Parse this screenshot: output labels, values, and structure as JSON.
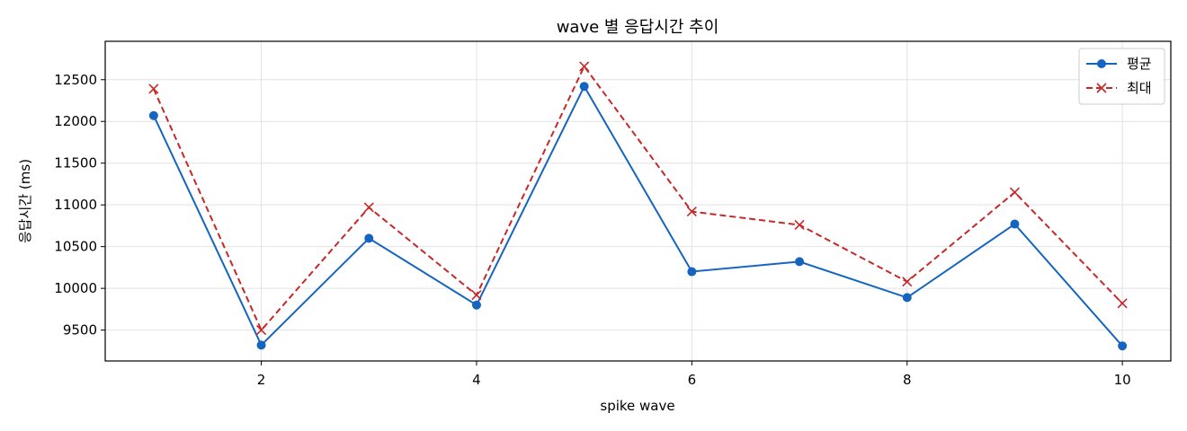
{
  "chart_data": {
    "type": "line",
    "title": "wave 별 응답시간 추이",
    "xlabel": "spike wave",
    "ylabel": "응답시간 (ms)",
    "x": [
      1,
      2,
      3,
      4,
      5,
      6,
      7,
      8,
      9,
      10
    ],
    "xticks": [
      2,
      4,
      6,
      8,
      10
    ],
    "yticks": [
      9500,
      10000,
      10500,
      11000,
      11500,
      12000,
      12500
    ],
    "xlim": [
      0.55,
      10.45
    ],
    "ylim": [
      9130,
      12960
    ],
    "grid": true,
    "legend_position": "top-right",
    "series": [
      {
        "name": "평균",
        "values": [
          12070,
          9320,
          10600,
          9800,
          12420,
          10200,
          10320,
          9890,
          10770,
          9310
        ],
        "color": "#1565c0",
        "linestyle": "solid",
        "marker": "circle"
      },
      {
        "name": "최대",
        "values": [
          12390,
          9500,
          10970,
          9920,
          12660,
          10920,
          10760,
          10080,
          11150,
          9820
        ],
        "color": "#c62828",
        "linestyle": "dashed",
        "marker": "x"
      }
    ]
  }
}
